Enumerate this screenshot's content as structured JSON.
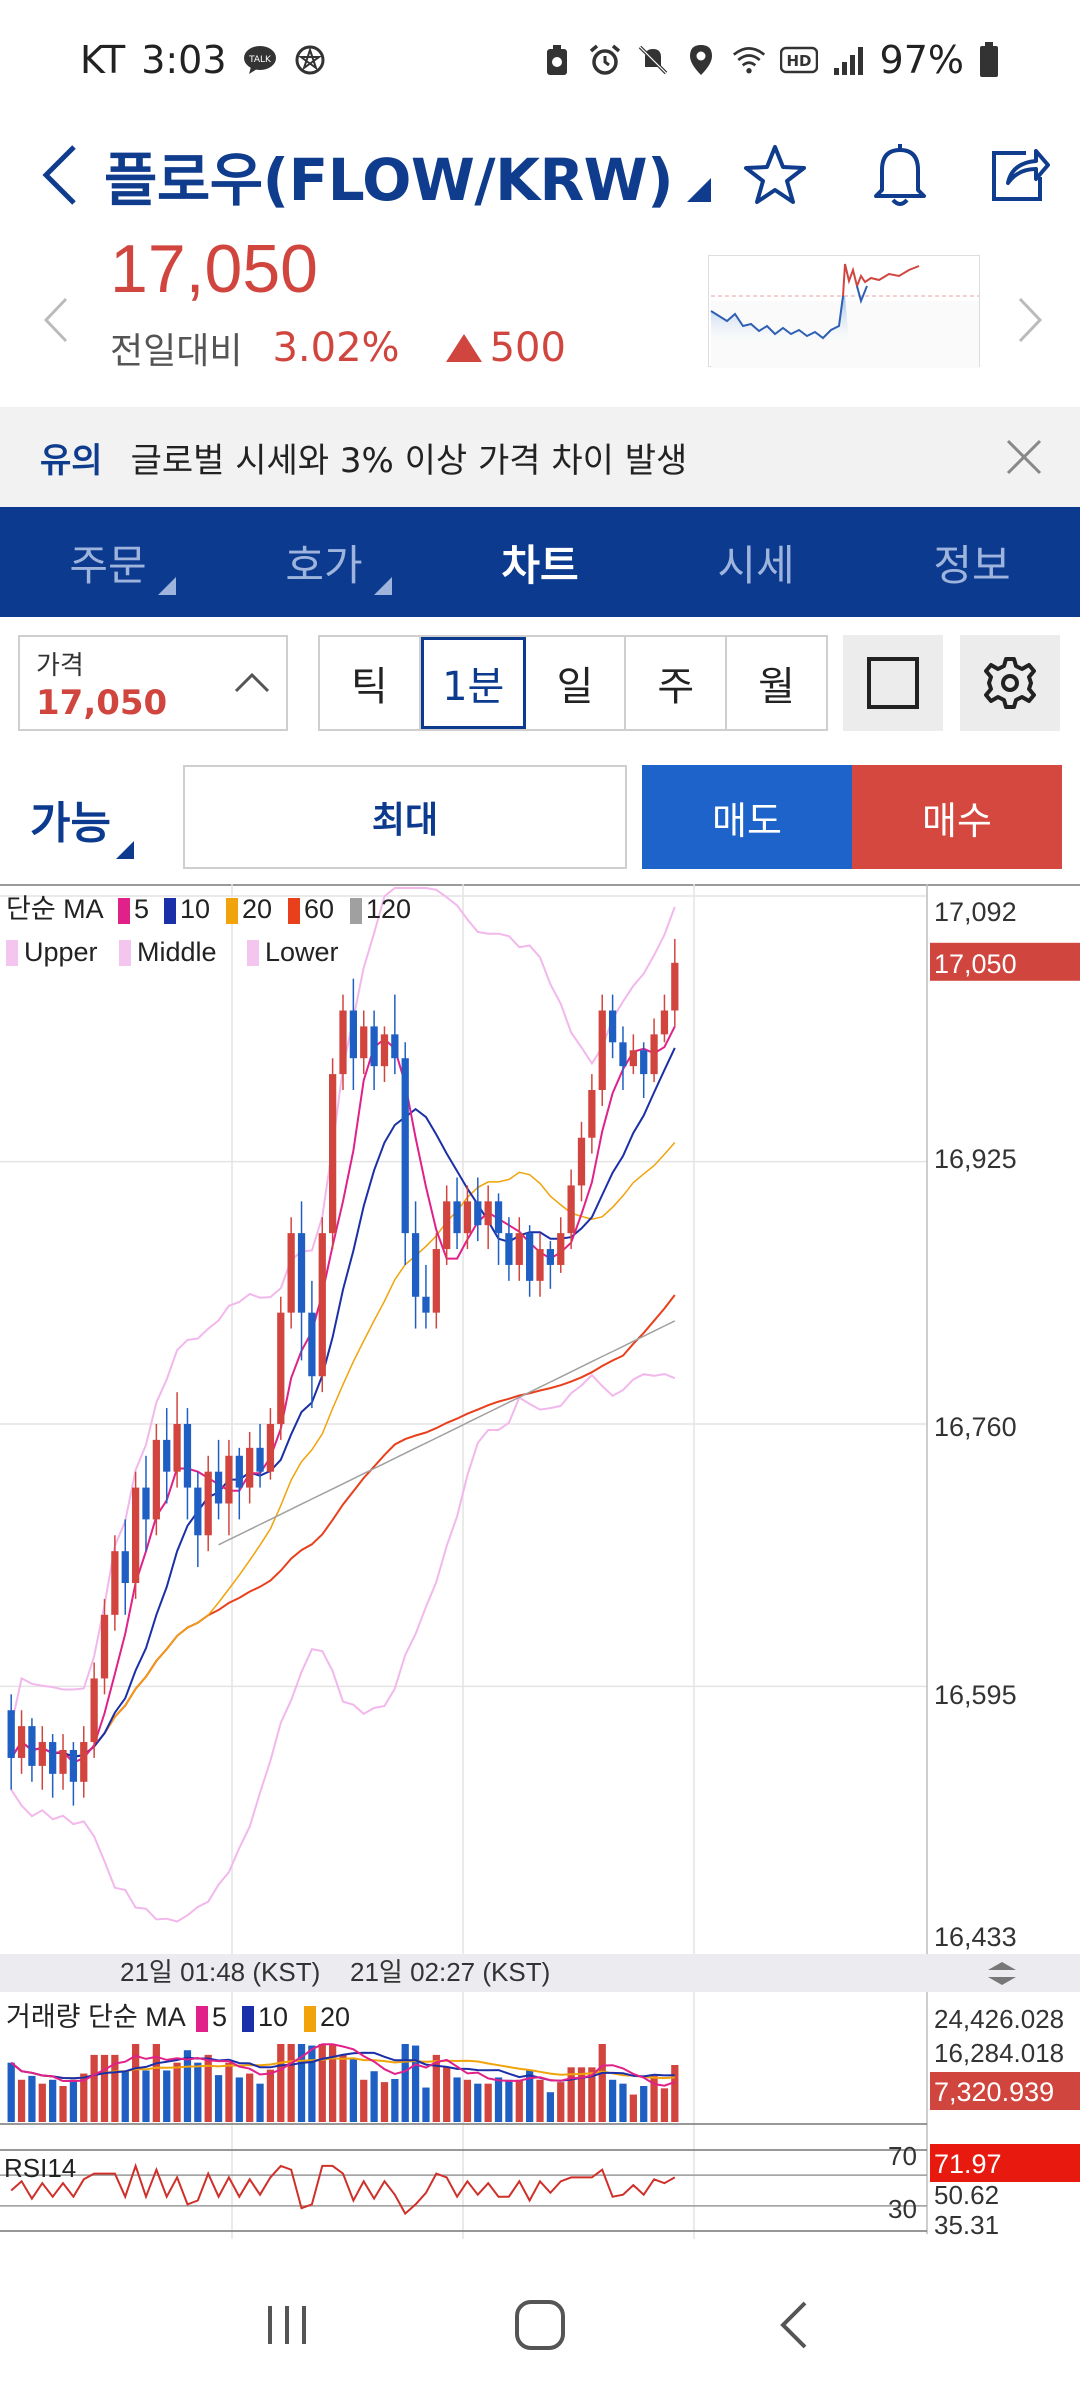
{
  "status_bar": {
    "carrier": "KT",
    "time": "3:03",
    "talk_badge": "TALK",
    "hd": "HD",
    "battery": "97%"
  },
  "header": {
    "title": "플로우(FLOW/KRW)"
  },
  "price": {
    "current": "17,050",
    "compare_label": "전일대비",
    "change_pct": "3.02%",
    "change_abs": "500",
    "direction": "up"
  },
  "notice": {
    "tag": "유의",
    "message": "글로벌 시세와 3% 이상 가격 차이 발생"
  },
  "tabs": [
    {
      "label": "주문",
      "active": false,
      "has_corner": true
    },
    {
      "label": "호가",
      "active": false,
      "has_corner": true
    },
    {
      "label": "차트",
      "active": true,
      "has_corner": false
    },
    {
      "label": "시세",
      "active": false,
      "has_corner": false
    },
    {
      "label": "정보",
      "active": false,
      "has_corner": false
    }
  ],
  "controls": {
    "price_label": "가격",
    "price_value": "17,050",
    "periods": [
      {
        "label": "틱",
        "active": false
      },
      {
        "label": "1분",
        "active": true
      },
      {
        "label": "일",
        "active": false
      },
      {
        "label": "주",
        "active": false
      },
      {
        "label": "월",
        "active": false
      }
    ]
  },
  "order": {
    "available_label": "가능",
    "max_label": "최대",
    "sell_label": "매도",
    "buy_label": "매수"
  },
  "chart_data": {
    "type": "candlestick",
    "ma_legend": {
      "prefix": "단순 MA",
      "entries": [
        {
          "label": "5",
          "color": "#e0218a"
        },
        {
          "label": "10",
          "color": "#1b2fa8"
        },
        {
          "label": "20",
          "color": "#f0a30a"
        },
        {
          "label": "60",
          "color": "#e8401c"
        },
        {
          "label": "120",
          "color": "#a0a0a0"
        }
      ]
    },
    "bb_legend": [
      {
        "label": "Upper",
        "color": "#f4c6ef"
      },
      {
        "label": "Middle",
        "color": "#f4c6ef"
      },
      {
        "label": "Lower",
        "color": "#f4c6ef"
      }
    ],
    "price_ticks": [
      "17,092",
      "16,925",
      "16,760",
      "16,595",
      "16,433"
    ],
    "ylim": [
      16433,
      17092
    ],
    "current_price_label": "17,050",
    "time_labels": [
      "21일 01:48 (KST)",
      "21일 02:27 (KST)"
    ],
    "candles": [
      {
        "o": 16580,
        "c": 16550,
        "h": 16590,
        "l": 16530
      },
      {
        "o": 16550,
        "c": 16570,
        "h": 16580,
        "l": 16540
      },
      {
        "o": 16570,
        "c": 16545,
        "h": 16575,
        "l": 16535
      },
      {
        "o": 16545,
        "c": 16560,
        "h": 16570,
        "l": 16530
      },
      {
        "o": 16560,
        "c": 16540,
        "h": 16565,
        "l": 16525
      },
      {
        "o": 16540,
        "c": 16555,
        "h": 16565,
        "l": 16530
      },
      {
        "o": 16555,
        "c": 16535,
        "h": 16560,
        "l": 16520
      },
      {
        "o": 16535,
        "c": 16560,
        "h": 16570,
        "l": 16525
      },
      {
        "o": 16560,
        "c": 16600,
        "h": 16610,
        "l": 16550
      },
      {
        "o": 16600,
        "c": 16640,
        "h": 16650,
        "l": 16590
      },
      {
        "o": 16640,
        "c": 16680,
        "h": 16690,
        "l": 16630
      },
      {
        "o": 16680,
        "c": 16660,
        "h": 16700,
        "l": 16640
      },
      {
        "o": 16660,
        "c": 16720,
        "h": 16730,
        "l": 16650
      },
      {
        "o": 16720,
        "c": 16700,
        "h": 16740,
        "l": 16680
      },
      {
        "o": 16700,
        "c": 16750,
        "h": 16760,
        "l": 16690
      },
      {
        "o": 16750,
        "c": 16730,
        "h": 16770,
        "l": 16710
      },
      {
        "o": 16730,
        "c": 16760,
        "h": 16780,
        "l": 16720
      },
      {
        "o": 16760,
        "c": 16720,
        "h": 16770,
        "l": 16700
      },
      {
        "o": 16720,
        "c": 16690,
        "h": 16730,
        "l": 16670
      },
      {
        "o": 16690,
        "c": 16730,
        "h": 16740,
        "l": 16680
      },
      {
        "o": 16730,
        "c": 16710,
        "h": 16750,
        "l": 16700
      },
      {
        "o": 16710,
        "c": 16740,
        "h": 16750,
        "l": 16690
      },
      {
        "o": 16740,
        "c": 16720,
        "h": 16745,
        "l": 16700
      },
      {
        "o": 16720,
        "c": 16745,
        "h": 16755,
        "l": 16710
      },
      {
        "o": 16745,
        "c": 16730,
        "h": 16760,
        "l": 16720
      },
      {
        "o": 16730,
        "c": 16760,
        "h": 16770,
        "l": 16725
      },
      {
        "o": 16760,
        "c": 16830,
        "h": 16840,
        "l": 16750
      },
      {
        "o": 16830,
        "c": 16880,
        "h": 16890,
        "l": 16820
      },
      {
        "o": 16880,
        "c": 16830,
        "h": 16900,
        "l": 16800
      },
      {
        "o": 16830,
        "c": 16790,
        "h": 16850,
        "l": 16770
      },
      {
        "o": 16790,
        "c": 16880,
        "h": 16890,
        "l": 16780
      },
      {
        "o": 16880,
        "c": 16980,
        "h": 16990,
        "l": 16870
      },
      {
        "o": 16980,
        "c": 17020,
        "h": 17030,
        "l": 16970
      },
      {
        "o": 17020,
        "c": 16990,
        "h": 17040,
        "l": 16970
      },
      {
        "o": 16990,
        "c": 17010,
        "h": 17020,
        "l": 16980
      },
      {
        "o": 17010,
        "c": 16985,
        "h": 17020,
        "l": 16970
      },
      {
        "o": 16985,
        "c": 17005,
        "h": 17010,
        "l": 16975
      },
      {
        "o": 17005,
        "c": 16990,
        "h": 17030,
        "l": 16980
      },
      {
        "o": 16990,
        "c": 16880,
        "h": 17000,
        "l": 16860
      },
      {
        "o": 16880,
        "c": 16840,
        "h": 16900,
        "l": 16820
      },
      {
        "o": 16840,
        "c": 16830,
        "h": 16860,
        "l": 16820
      },
      {
        "o": 16830,
        "c": 16870,
        "h": 16880,
        "l": 16820
      },
      {
        "o": 16870,
        "c": 16900,
        "h": 16910,
        "l": 16860
      },
      {
        "o": 16900,
        "c": 16880,
        "h": 16915,
        "l": 16870
      },
      {
        "o": 16880,
        "c": 16900,
        "h": 16910,
        "l": 16870
      },
      {
        "o": 16900,
        "c": 16885,
        "h": 16915,
        "l": 16875
      },
      {
        "o": 16885,
        "c": 16900,
        "h": 16910,
        "l": 16870
      },
      {
        "o": 16900,
        "c": 16880,
        "h": 16905,
        "l": 16860
      },
      {
        "o": 16880,
        "c": 16860,
        "h": 16890,
        "l": 16850
      },
      {
        "o": 16860,
        "c": 16880,
        "h": 16890,
        "l": 16850
      },
      {
        "o": 16880,
        "c": 16850,
        "h": 16885,
        "l": 16840
      },
      {
        "o": 16850,
        "c": 16870,
        "h": 16880,
        "l": 16840
      },
      {
        "o": 16870,
        "c": 16860,
        "h": 16875,
        "l": 16845
      },
      {
        "o": 16860,
        "c": 16880,
        "h": 16890,
        "l": 16855
      },
      {
        "o": 16880,
        "c": 16910,
        "h": 16920,
        "l": 16870
      },
      {
        "o": 16910,
        "c": 16940,
        "h": 16950,
        "l": 16900
      },
      {
        "o": 16940,
        "c": 16970,
        "h": 16980,
        "l": 16930
      },
      {
        "o": 16970,
        "c": 17020,
        "h": 17030,
        "l": 16960
      },
      {
        "o": 17020,
        "c": 17000,
        "h": 17030,
        "l": 16990
      },
      {
        "o": 17000,
        "c": 16985,
        "h": 17010,
        "l": 16970
      },
      {
        "o": 16985,
        "c": 16995,
        "h": 17005,
        "l": 16980
      },
      {
        "o": 16995,
        "c": 16980,
        "h": 17000,
        "l": 16965
      },
      {
        "o": 16980,
        "c": 17005,
        "h": 17015,
        "l": 16975
      },
      {
        "o": 17005,
        "c": 17020,
        "h": 17030,
        "l": 17000
      },
      {
        "o": 17020,
        "c": 17050,
        "h": 17065,
        "l": 17010
      }
    ],
    "volume_legend": {
      "prefix": "거래량 단순 MA",
      "entries": [
        {
          "label": "5",
          "color": "#e0218a"
        },
        {
          "label": "10",
          "color": "#1b2fa8"
        },
        {
          "label": "20",
          "color": "#f0a30a"
        }
      ]
    },
    "volume_ticks": [
      "24,426.028",
      "16,284.018"
    ],
    "volume_current": "7,320.939",
    "rsi": {
      "label": "RSI14",
      "level_high": "70",
      "level_low": "30",
      "current": "71.97",
      "ticks": [
        "50.62",
        "35.31"
      ]
    }
  }
}
